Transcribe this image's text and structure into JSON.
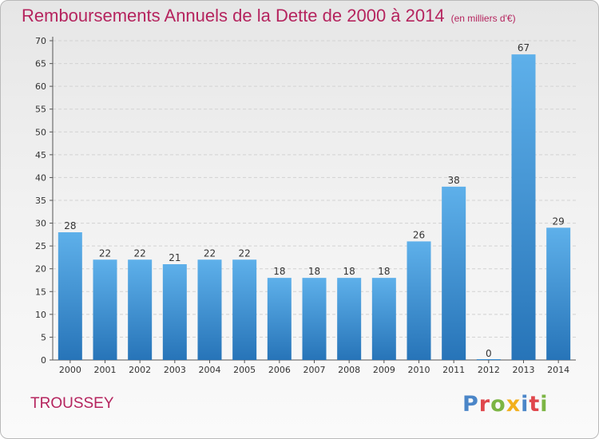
{
  "chart_data": {
    "type": "bar",
    "title": "Remboursements Annuels de la Dette de 2000 à 2014",
    "subtitle": "(en milliers d'€)",
    "categories": [
      "2000",
      "2001",
      "2002",
      "2003",
      "2004",
      "2005",
      "2006",
      "2007",
      "2008",
      "2009",
      "2010",
      "2011",
      "2012",
      "2013",
      "2014"
    ],
    "values": [
      28,
      22,
      22,
      21,
      22,
      22,
      18,
      18,
      18,
      18,
      26,
      38,
      0,
      67,
      29
    ],
    "ylim": [
      0,
      70
    ],
    "yticks": [
      0,
      5,
      10,
      15,
      20,
      25,
      30,
      35,
      40,
      45,
      50,
      55,
      60,
      65,
      70
    ],
    "grid": true,
    "bar_color": "#3a8fd6",
    "title_color": "#b5245e"
  },
  "footer": {
    "commune": "TROUSSEY",
    "logo_letters": [
      {
        "ch": "P",
        "color": "#4b86c8"
      },
      {
        "ch": "r",
        "color": "#e0474c"
      },
      {
        "ch": "o",
        "color": "#7cb544"
      },
      {
        "ch": "x",
        "color": "#f2b01e"
      },
      {
        "ch": "i",
        "color": "#4b86c8"
      },
      {
        "ch": "t",
        "color": "#e0474c"
      },
      {
        "ch": "i",
        "color": "#7cb544"
      }
    ]
  }
}
